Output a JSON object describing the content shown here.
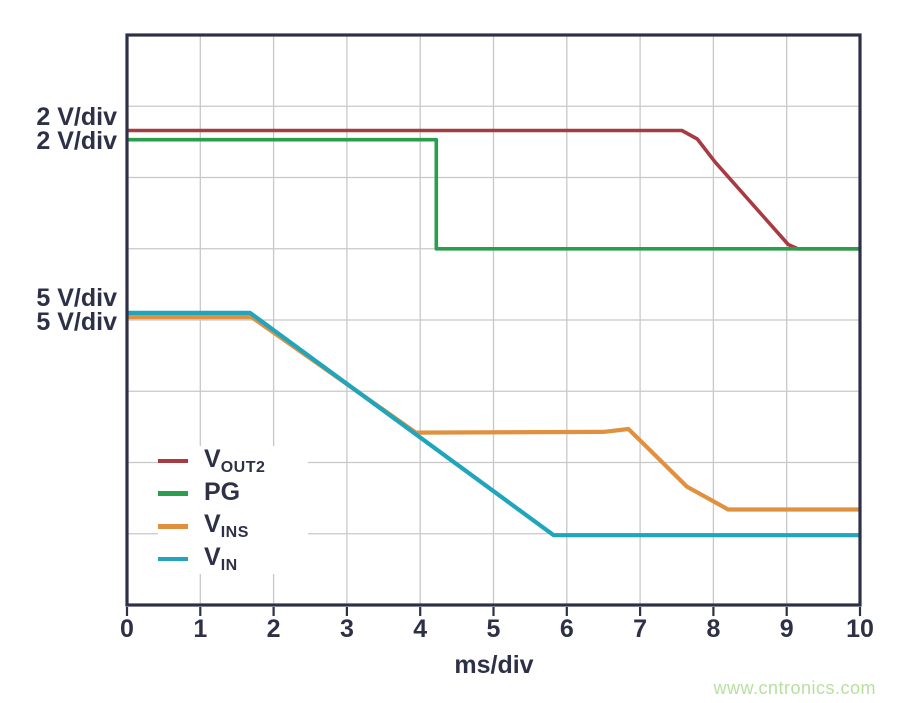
{
  "watermark": "www.cntronics.com",
  "colors": {
    "frame": "#2d3148",
    "grid": "#c8c8c8",
    "text": "#2d3148",
    "watermark": "#b7e09f",
    "background": "#ffffff"
  },
  "chart_data": {
    "type": "line",
    "title": "",
    "xlabel": "ms/div",
    "ylabel": "",
    "x_range": [
      0,
      10
    ],
    "y_divisions": 8,
    "grid": true,
    "legend_position": "inside lower-left",
    "x_ticks": [
      "0",
      "1",
      "2",
      "3",
      "4",
      "5",
      "6",
      "7",
      "8",
      "9",
      "10"
    ],
    "scale_labels": [
      "2 V/div",
      "2 V/div",
      "5 V/div",
      "5 V/div"
    ],
    "series": [
      {
        "name": "VOUT2",
        "label_main": "V",
        "label_sub": "OUT2",
        "scale": "2 V/div",
        "color": "#a83b42",
        "points": [
          [
            0,
            6.66
          ],
          [
            7.57,
            6.66
          ],
          [
            7.78,
            6.54
          ],
          [
            8.02,
            6.22
          ],
          [
            9.02,
            5.06
          ],
          [
            9.15,
            5.0
          ],
          [
            10,
            5.0
          ]
        ]
      },
      {
        "name": "PG",
        "label_main": "PG",
        "label_sub": "",
        "scale": "2 V/div",
        "color": "#2b9e4d",
        "points": [
          [
            0,
            6.53
          ],
          [
            4.22,
            6.53
          ],
          [
            4.22,
            5.0
          ],
          [
            10,
            5.0
          ]
        ]
      },
      {
        "name": "VINS",
        "label_main": "V",
        "label_sub": "INS",
        "scale": "5 V/div",
        "color": "#e09140",
        "points": [
          [
            0,
            4.04
          ],
          [
            1.7,
            4.04
          ],
          [
            3.94,
            2.42
          ],
          [
            6.5,
            2.43
          ],
          [
            6.84,
            2.47
          ],
          [
            7.13,
            2.18
          ],
          [
            7.64,
            1.66
          ],
          [
            8.2,
            1.34
          ],
          [
            10,
            1.34
          ]
        ]
      },
      {
        "name": "VIN",
        "label_main": "V",
        "label_sub": "IN",
        "scale": "5 V/div",
        "color": "#21a5bc",
        "points": [
          [
            0,
            4.1
          ],
          [
            1.68,
            4.1
          ],
          [
            5.82,
            0.98
          ],
          [
            10,
            0.98
          ]
        ]
      }
    ]
  }
}
